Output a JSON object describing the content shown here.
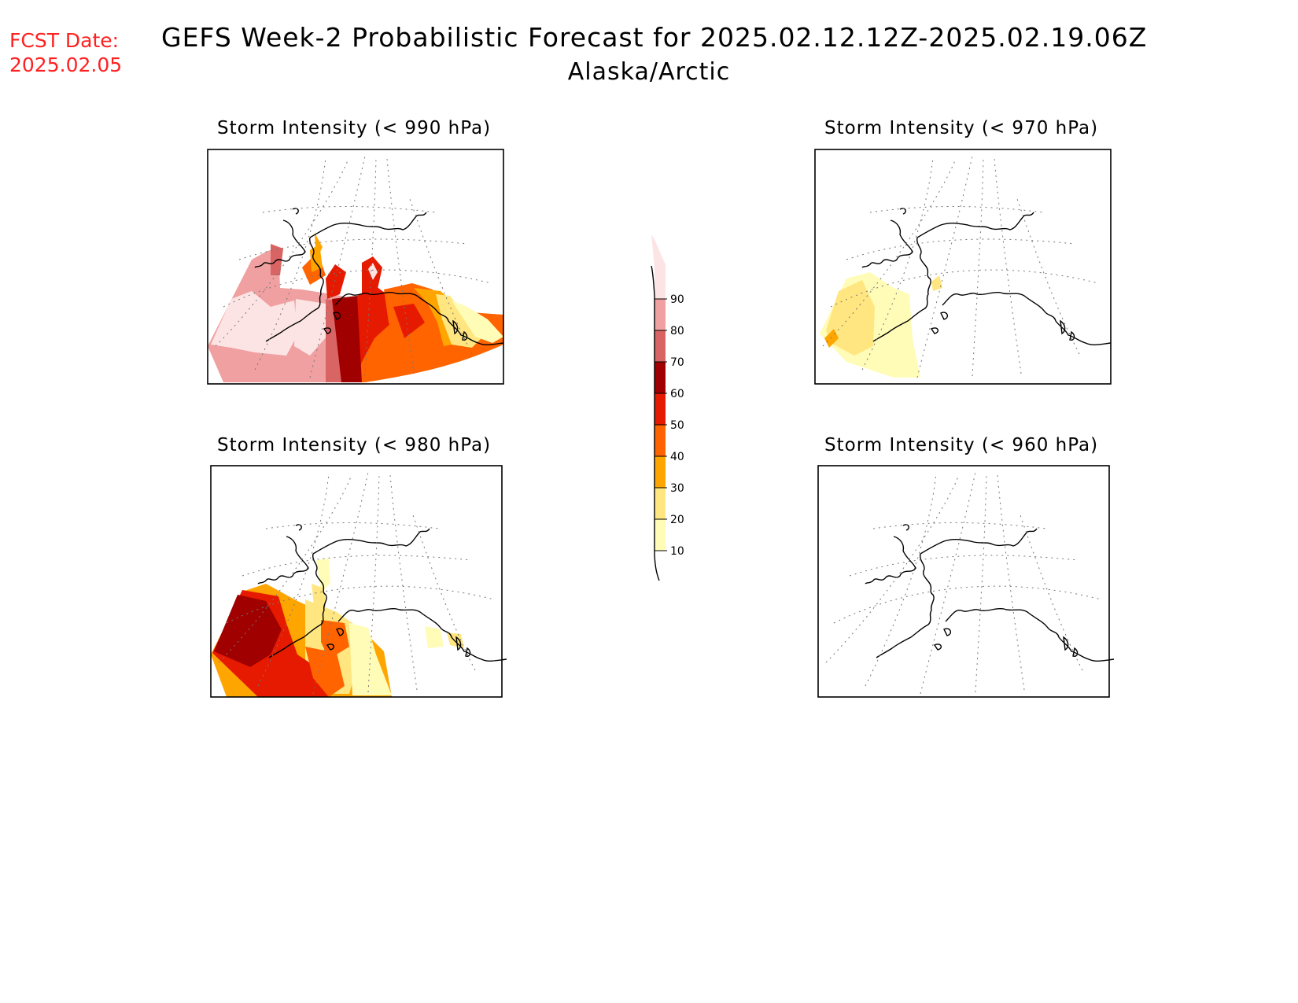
{
  "header": {
    "fcst_label": "FCST Date:",
    "fcst_date": "2025.02.05",
    "title": "GEFS Week-2 Probabilistic Forecast for 2025.02.12.12Z-2025.02.19.06Z",
    "region": "Alaska/Arctic"
  },
  "panels": [
    {
      "id": "p990",
      "title": "Storm Intensity (< 990 hPa)"
    },
    {
      "id": "p970",
      "title": "Storm Intensity (< 970 hPa)"
    },
    {
      "id": "p980",
      "title": "Storm Intensity (< 980 hPa)"
    },
    {
      "id": "p960",
      "title": "Storm Intensity (< 960 hPa)"
    }
  ],
  "colorbar": {
    "levels": [
      "10",
      "20",
      "30",
      "40",
      "50",
      "60",
      "70",
      "80",
      "90"
    ],
    "colors": [
      "#fffcb8",
      "#ffe680",
      "#ffa500",
      "#ff6400",
      "#e61a00",
      "#a00000",
      "#d96464",
      "#f0a0a0",
      "#fde4e4"
    ]
  }
}
